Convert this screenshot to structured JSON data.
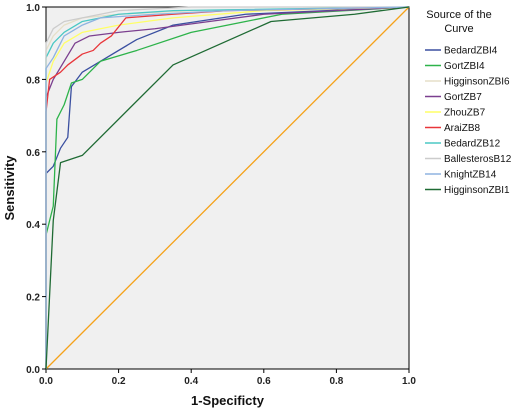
{
  "chart_data": {
    "type": "line",
    "xlabel": "1-Specificty",
    "ylabel": "Sensitivity",
    "xlim": [
      0,
      1
    ],
    "ylim": [
      0,
      1
    ],
    "x_ticks": [
      "0.0",
      "0.2",
      "0.4",
      "0.6",
      "0.8",
      "1.0"
    ],
    "y_ticks": [
      "0.0",
      "0.2",
      "0.4",
      "0.6",
      "0.8",
      "1.0"
    ],
    "grid": false,
    "legend_title": "Source of the Curve",
    "legend_position": "right",
    "series": [
      {
        "name": "BedardZBI4",
        "color": "#3a4fa0",
        "points": [
          [
            0,
            0
          ],
          [
            0,
            0.54
          ],
          [
            0.02,
            0.56
          ],
          [
            0.04,
            0.61
          ],
          [
            0.06,
            0.64
          ],
          [
            0.07,
            0.78
          ],
          [
            0.1,
            0.82
          ],
          [
            0.15,
            0.85
          ],
          [
            0.25,
            0.91
          ],
          [
            0.35,
            0.95
          ],
          [
            0.55,
            0.98
          ],
          [
            1,
            1
          ]
        ]
      },
      {
        "name": "GortZBI4",
        "color": "#2db34a",
        "points": [
          [
            0,
            0
          ],
          [
            0,
            0.37
          ],
          [
            0.02,
            0.45
          ],
          [
            0.03,
            0.69
          ],
          [
            0.05,
            0.73
          ],
          [
            0.07,
            0.79
          ],
          [
            0.1,
            0.8
          ],
          [
            0.15,
            0.85
          ],
          [
            0.25,
            0.88
          ],
          [
            0.4,
            0.93
          ],
          [
            0.55,
            0.96
          ],
          [
            0.65,
            0.98
          ],
          [
            1,
            1
          ]
        ]
      },
      {
        "name": "HigginsonZBI6",
        "color": "#e5dfc8",
        "points": [
          [
            0,
            0
          ],
          [
            0,
            0.88
          ],
          [
            0.02,
            0.92
          ],
          [
            0.05,
            0.95
          ],
          [
            0.1,
            0.97
          ],
          [
            0.2,
            0.98
          ],
          [
            0.4,
            0.99
          ],
          [
            1,
            1
          ]
        ]
      },
      {
        "name": "GortZB7",
        "color": "#7b3f8f",
        "points": [
          [
            0,
            0
          ],
          [
            0,
            0.75
          ],
          [
            0.02,
            0.8
          ],
          [
            0.05,
            0.85
          ],
          [
            0.08,
            0.9
          ],
          [
            0.12,
            0.92
          ],
          [
            0.2,
            0.93
          ],
          [
            0.3,
            0.94
          ],
          [
            0.45,
            0.96
          ],
          [
            0.6,
            0.98
          ],
          [
            1,
            1
          ]
        ]
      },
      {
        "name": "ZhouZB7",
        "color": "#ffff66",
        "points": [
          [
            0,
            0
          ],
          [
            0,
            0.79
          ],
          [
            0.02,
            0.85
          ],
          [
            0.05,
            0.9
          ],
          [
            0.1,
            0.93
          ],
          [
            0.2,
            0.95
          ],
          [
            0.35,
            0.97
          ],
          [
            0.6,
            0.99
          ],
          [
            1,
            1
          ]
        ]
      },
      {
        "name": "AraiZB8",
        "color": "#e8363a",
        "points": [
          [
            0,
            0
          ],
          [
            0,
            0.71
          ],
          [
            0.01,
            0.8
          ],
          [
            0.04,
            0.82
          ],
          [
            0.06,
            0.84
          ],
          [
            0.1,
            0.87
          ],
          [
            0.13,
            0.88
          ],
          [
            0.15,
            0.9
          ],
          [
            0.18,
            0.92
          ],
          [
            0.22,
            0.97
          ],
          [
            0.35,
            0.98
          ],
          [
            0.5,
            0.99
          ],
          [
            1,
            1
          ]
        ]
      },
      {
        "name": "BedardZB12",
        "color": "#4ac8c4",
        "points": [
          [
            0,
            0
          ],
          [
            0,
            0.86
          ],
          [
            0.02,
            0.9
          ],
          [
            0.05,
            0.93
          ],
          [
            0.1,
            0.96
          ],
          [
            0.2,
            0.98
          ],
          [
            0.35,
            0.99
          ],
          [
            1,
            1
          ]
        ]
      },
      {
        "name": "BallesterosB12",
        "color": "#cccccc",
        "points": [
          [
            0,
            0
          ],
          [
            0,
            0.9
          ],
          [
            0.02,
            0.94
          ],
          [
            0.05,
            0.96
          ],
          [
            0.1,
            0.97
          ],
          [
            0.2,
            0.99
          ],
          [
            0.4,
            1.0
          ],
          [
            1,
            1
          ]
        ]
      },
      {
        "name": "KnightZB14",
        "color": "#8fb3e0",
        "points": [
          [
            0,
            0
          ],
          [
            0,
            0.83
          ],
          [
            0.02,
            0.86
          ],
          [
            0.05,
            0.92
          ],
          [
            0.1,
            0.95
          ],
          [
            0.15,
            0.97
          ],
          [
            0.3,
            0.98
          ],
          [
            0.5,
            0.99
          ],
          [
            1,
            1
          ]
        ]
      },
      {
        "name": "HigginsonZBI1",
        "color": "#1f6b34",
        "points": [
          [
            0,
            0
          ],
          [
            0.02,
            0.41
          ],
          [
            0.04,
            0.57
          ],
          [
            0.1,
            0.59
          ],
          [
            0.35,
            0.84
          ],
          [
            0.62,
            0.96
          ],
          [
            0.85,
            0.98
          ],
          [
            1,
            1
          ]
        ]
      }
    ],
    "reference_line": {
      "color": "#f5a21a",
      "points": [
        [
          0,
          0
        ],
        [
          1,
          1
        ]
      ]
    }
  }
}
